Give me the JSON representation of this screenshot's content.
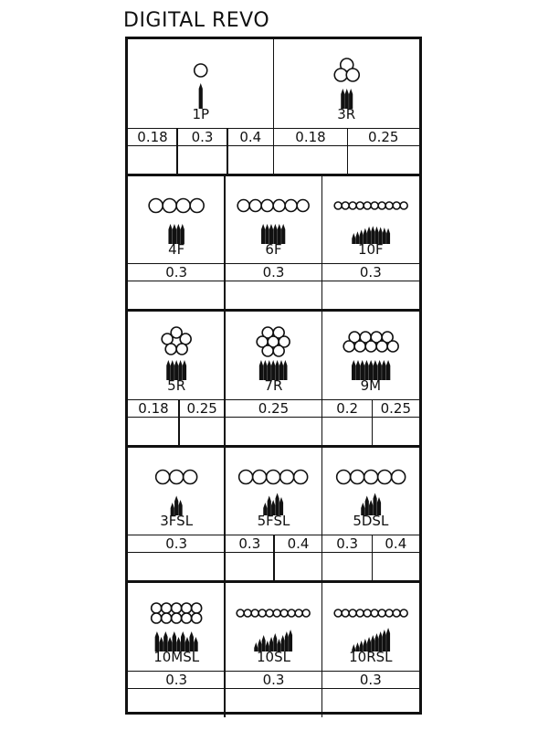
{
  "title": "DIGITAL REVO",
  "rows": [
    {
      "cells": [
        {
          "label": "1P",
          "circles": "single",
          "needles": 1,
          "needle_style": "even",
          "values": [
            "0.18",
            "0.3",
            "0.4"
          ]
        },
        {
          "label": "3R",
          "circles": "round3",
          "needles": 3,
          "needle_style": "even",
          "values": [
            "0.18",
            "0.25"
          ]
        }
      ]
    },
    {
      "cells": [
        {
          "label": "4F",
          "circles": "line4",
          "needles": 4,
          "needle_style": "even",
          "values": [
            "0.3"
          ]
        },
        {
          "label": "6F",
          "circles": "line6",
          "needles": 6,
          "needle_style": "even",
          "values": [
            "0.3"
          ]
        },
        {
          "label": "10F",
          "circles": "line10",
          "needles": 10,
          "needle_style": "curved",
          "values": [
            "0.3"
          ]
        }
      ]
    },
    {
      "cells": [
        {
          "label": "5R",
          "circles": "round5",
          "needles": 5,
          "needle_style": "even",
          "values": [
            "0.18",
            "0.25"
          ]
        },
        {
          "label": "7R",
          "circles": "round7",
          "needles": 7,
          "needle_style": "even",
          "values": [
            "0.25"
          ]
        },
        {
          "label": "9M",
          "circles": "mag9",
          "needles": 9,
          "needle_style": "mag",
          "values": [
            "0.2",
            "0.25"
          ]
        }
      ]
    },
    {
      "cells": [
        {
          "label": "3FSL",
          "circles": "line3",
          "needles": 3,
          "needle_style": "staggered",
          "values": [
            "0.3"
          ]
        },
        {
          "label": "5FSL",
          "circles": "line5",
          "needles": 5,
          "needle_style": "staggered",
          "values": [
            "0.3",
            "0.4"
          ]
        },
        {
          "label": "5DSL",
          "circles": "line5",
          "needles": 5,
          "needle_style": "staggered",
          "values": [
            "0.3",
            "0.4"
          ]
        }
      ]
    },
    {
      "cells": [
        {
          "label": "10MSL",
          "circles": "mag10",
          "needles": 10,
          "needle_style": "mag",
          "values": [
            "0.3"
          ]
        },
        {
          "label": "10SL",
          "circles": "line10",
          "needles": 10,
          "needle_style": "graded",
          "values": [
            "0.3"
          ]
        },
        {
          "label": "10RSL",
          "circles": "line10",
          "needles": 10,
          "needle_style": "rising",
          "values": [
            "0.3"
          ]
        }
      ]
    }
  ]
}
